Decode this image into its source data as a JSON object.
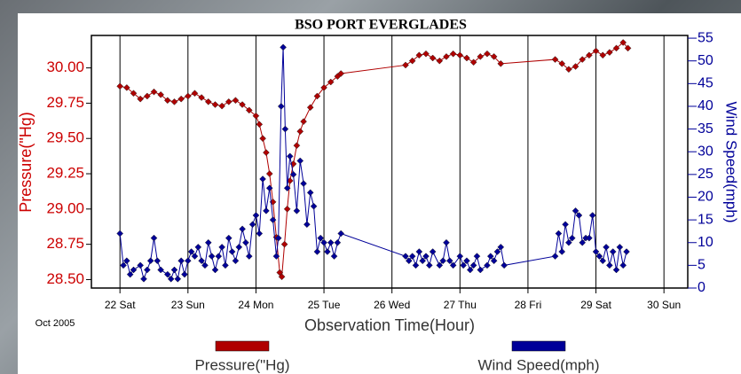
{
  "chart_data": {
    "type": "line",
    "title": "BSO PORT EVERGLADES",
    "x_label": "Observation Time(Hour)",
    "y_label": "Pressure(\"Hg)",
    "y2_label": "Wind Speed(mph)",
    "note": "Oct 2005",
    "xlim": [
      21.58,
      30.35
    ],
    "xticks": [
      {
        "value": 22,
        "label": "22 Sat"
      },
      {
        "value": 23,
        "label": "23 Sun"
      },
      {
        "value": 24,
        "label": "24 Mon"
      },
      {
        "value": 25,
        "label": "25 Tue"
      },
      {
        "value": 26,
        "label": "26 Wed"
      },
      {
        "value": 27,
        "label": "27 Thu"
      },
      {
        "value": 28,
        "label": "28 Fri"
      },
      {
        "value": 29,
        "label": "29 Sat"
      },
      {
        "value": 30,
        "label": "30 Sun"
      }
    ],
    "ylim": [
      28.44,
      30.23
    ],
    "yticks": [
      {
        "value": 28.5,
        "label": "28.50"
      },
      28.75,
      {
        "value": 29,
        "label": "29.00"
      },
      29.25,
      {
        "value": 29.5,
        "label": "29.50"
      },
      29.75,
      {
        "value": 30,
        "label": "30.00"
      }
    ],
    "y2lim": [
      0,
      55.6
    ],
    "y2ticks": [
      0,
      5,
      10,
      15,
      20,
      25,
      30,
      35,
      40,
      45,
      50,
      55
    ],
    "grid": true,
    "series": [
      {
        "name": "Pressure(\"Hg)",
        "color": "#b00000",
        "x": [
          22.0,
          22.1,
          22.2,
          22.3,
          22.4,
          22.5,
          22.6,
          22.7,
          22.8,
          22.9,
          23.0,
          23.1,
          23.2,
          23.3,
          23.4,
          23.5,
          23.6,
          23.7,
          23.8,
          23.9,
          24.0,
          24.05,
          24.1,
          24.15,
          24.2,
          24.25,
          24.3,
          24.35,
          24.38,
          24.42,
          24.46,
          24.5,
          24.55,
          24.6,
          24.65,
          24.7,
          24.8,
          24.9,
          25.0,
          25.1,
          25.2,
          25.25,
          26.2,
          26.3,
          26.4,
          26.5,
          26.6,
          26.7,
          26.8,
          26.9,
          27.0,
          27.1,
          27.2,
          27.3,
          27.4,
          27.5,
          27.6,
          28.4,
          28.5,
          28.6,
          28.7,
          28.8,
          28.9,
          29.0,
          29.1,
          29.2,
          29.3,
          29.4,
          29.47
        ],
        "values": [
          29.87,
          29.86,
          29.82,
          29.78,
          29.8,
          29.83,
          29.81,
          29.77,
          29.76,
          29.78,
          29.8,
          29.82,
          29.79,
          29.76,
          29.74,
          29.73,
          29.76,
          29.77,
          29.74,
          29.7,
          29.66,
          29.6,
          29.5,
          29.4,
          29.25,
          29.05,
          28.8,
          28.55,
          28.52,
          28.75,
          29.0,
          29.2,
          29.32,
          29.45,
          29.55,
          29.62,
          29.72,
          29.8,
          29.86,
          29.9,
          29.94,
          29.96,
          30.02,
          30.05,
          30.09,
          30.1,
          30.07,
          30.05,
          30.08,
          30.1,
          30.09,
          30.07,
          30.04,
          30.08,
          30.1,
          30.08,
          30.03,
          30.06,
          30.03,
          29.99,
          30.01,
          30.06,
          30.09,
          30.12,
          30.09,
          30.11,
          30.14,
          30.18,
          30.14
        ]
      },
      {
        "name": "Wind Speed(mph)",
        "color": "#000099",
        "axis": "y2",
        "x": [
          22.0,
          22.05,
          22.1,
          22.15,
          22.2,
          22.3,
          22.35,
          22.4,
          22.45,
          22.5,
          22.55,
          22.6,
          22.7,
          22.75,
          22.8,
          22.85,
          22.9,
          22.95,
          23.0,
          23.05,
          23.1,
          23.15,
          23.2,
          23.25,
          23.3,
          23.35,
          23.4,
          23.45,
          23.5,
          23.55,
          23.6,
          23.65,
          23.7,
          23.75,
          23.8,
          23.85,
          23.9,
          23.95,
          24.0,
          24.05,
          24.1,
          24.15,
          24.2,
          24.25,
          24.3,
          24.33,
          24.37,
          24.4,
          24.43,
          24.46,
          24.5,
          24.55,
          24.6,
          24.65,
          24.7,
          24.75,
          24.8,
          24.85,
          24.9,
          24.95,
          25.0,
          25.05,
          25.1,
          25.15,
          25.2,
          25.25,
          26.2,
          26.25,
          26.3,
          26.35,
          26.4,
          26.45,
          26.5,
          26.55,
          26.6,
          26.7,
          26.75,
          26.8,
          26.85,
          26.9,
          27.0,
          27.05,
          27.1,
          27.15,
          27.2,
          27.25,
          27.3,
          27.4,
          27.45,
          27.5,
          27.55,
          27.6,
          27.65,
          28.4,
          28.45,
          28.5,
          28.55,
          28.6,
          28.65,
          28.7,
          28.75,
          28.8,
          28.85,
          28.9,
          28.95,
          29.0,
          29.05,
          29.1,
          29.15,
          29.2,
          29.25,
          29.3,
          29.35,
          29.4,
          29.45
        ],
        "values": [
          12,
          5,
          6,
          3,
          4,
          5,
          2,
          4,
          6,
          11,
          6,
          4,
          3,
          2,
          4,
          2,
          6,
          3,
          6,
          8,
          7,
          9,
          6,
          5,
          10,
          7,
          4,
          7,
          9,
          5,
          11,
          8,
          6,
          9,
          13,
          10,
          7,
          14,
          16,
          12,
          24,
          17,
          22,
          15,
          7,
          11,
          40,
          53,
          35,
          22,
          29,
          25,
          17,
          28,
          23,
          14,
          21,
          18,
          8,
          11,
          10,
          8,
          10,
          7,
          10,
          12,
          7,
          6,
          7,
          5,
          8,
          6,
          7,
          5,
          8,
          5,
          6,
          10,
          6,
          5,
          7,
          5,
          6,
          4,
          5,
          7,
          4,
          5,
          7,
          6,
          8,
          9,
          5,
          7,
          12,
          8,
          14,
          10,
          11,
          17,
          16,
          10,
          11,
          11,
          16,
          8,
          7,
          6,
          9,
          5,
          8,
          4,
          9,
          5,
          8
        ]
      }
    ]
  }
}
